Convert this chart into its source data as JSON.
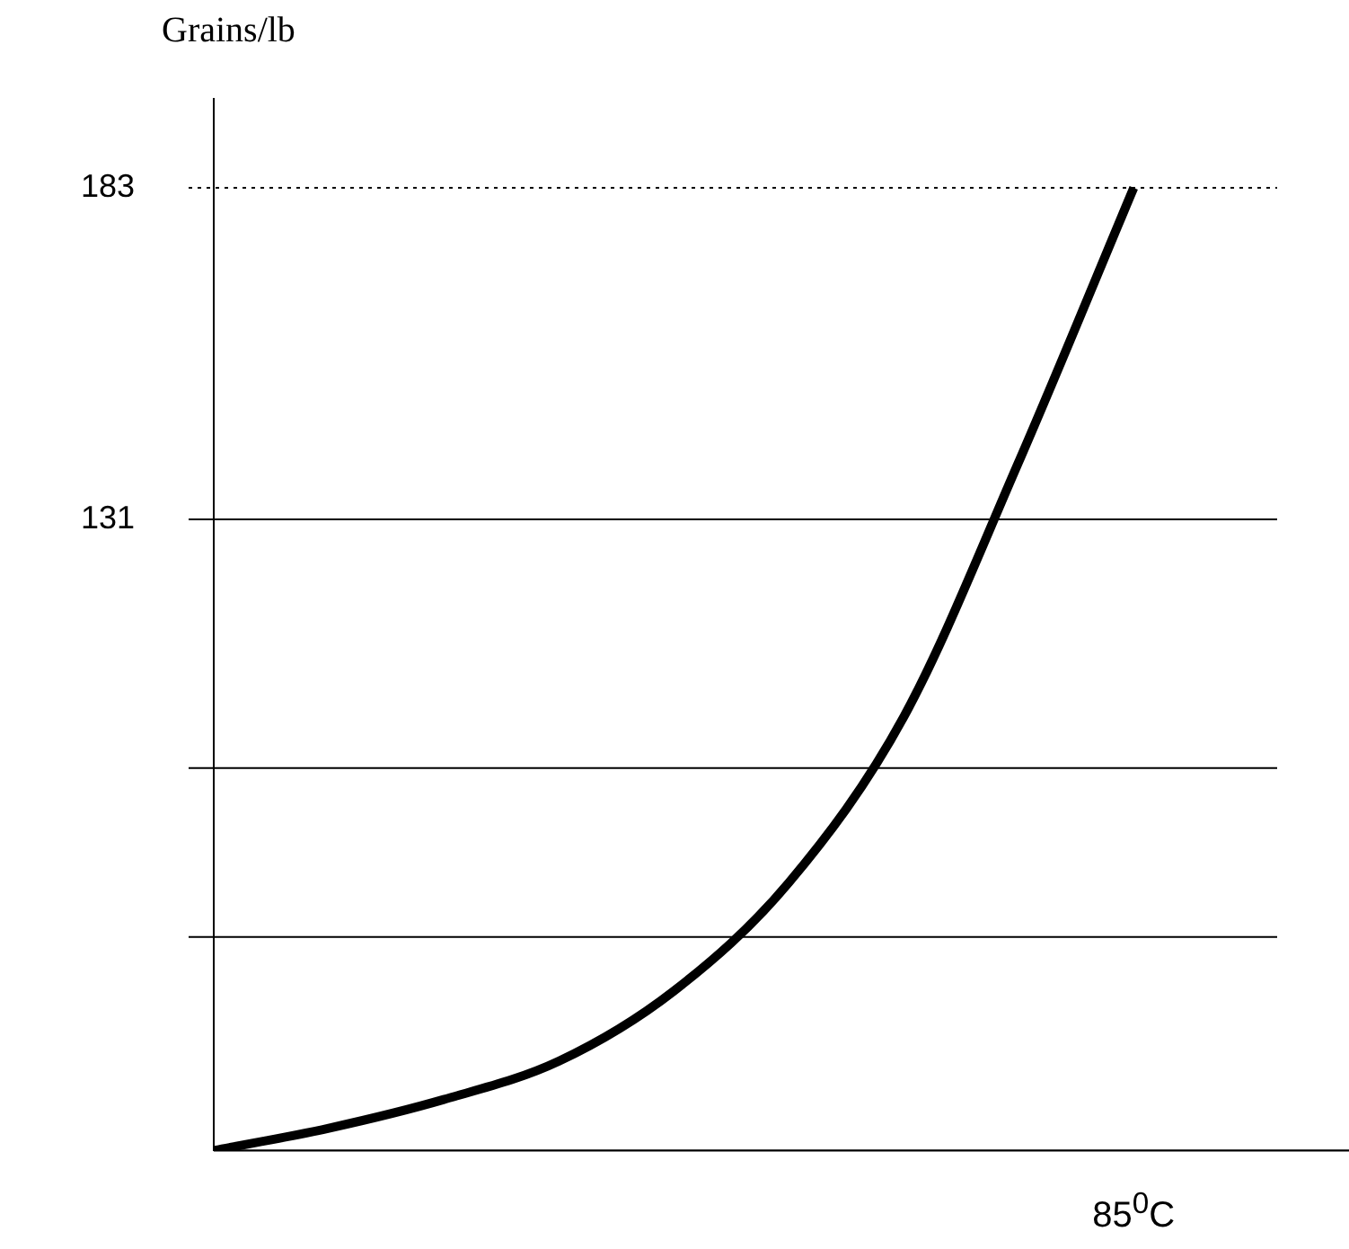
{
  "chart_data": {
    "type": "line",
    "ylabel": "Grains/lb",
    "xlabel": "85$^{0}$C",
    "categories": [
      null,
      null,
      null,
      null,
      null,
      null,
      null,
      null,
      null
    ],
    "values": [
      32,
      35.5,
      40,
      46,
      57,
      74,
      100,
      140,
      183
    ],
    "color": "#000000",
    "ylim": [
      32,
      197
    ],
    "yticks": [
      131,
      183
    ],
    "grid": false,
    "marker": "none",
    "line_style": "solid",
    "ref_lines": [
      {
        "axis": "y",
        "value": 183,
        "line_style": "dotted",
        "color": "#000000"
      },
      {
        "axis": "y",
        "value": 131,
        "line_style": "solid",
        "color": "#000000"
      },
      {
        "axis": "y",
        "value": 92,
        "line_style": "solid",
        "color": "#000000"
      },
      {
        "axis": "y",
        "value": 65.5,
        "line_style": "solid",
        "color": "#000000"
      }
    ]
  }
}
